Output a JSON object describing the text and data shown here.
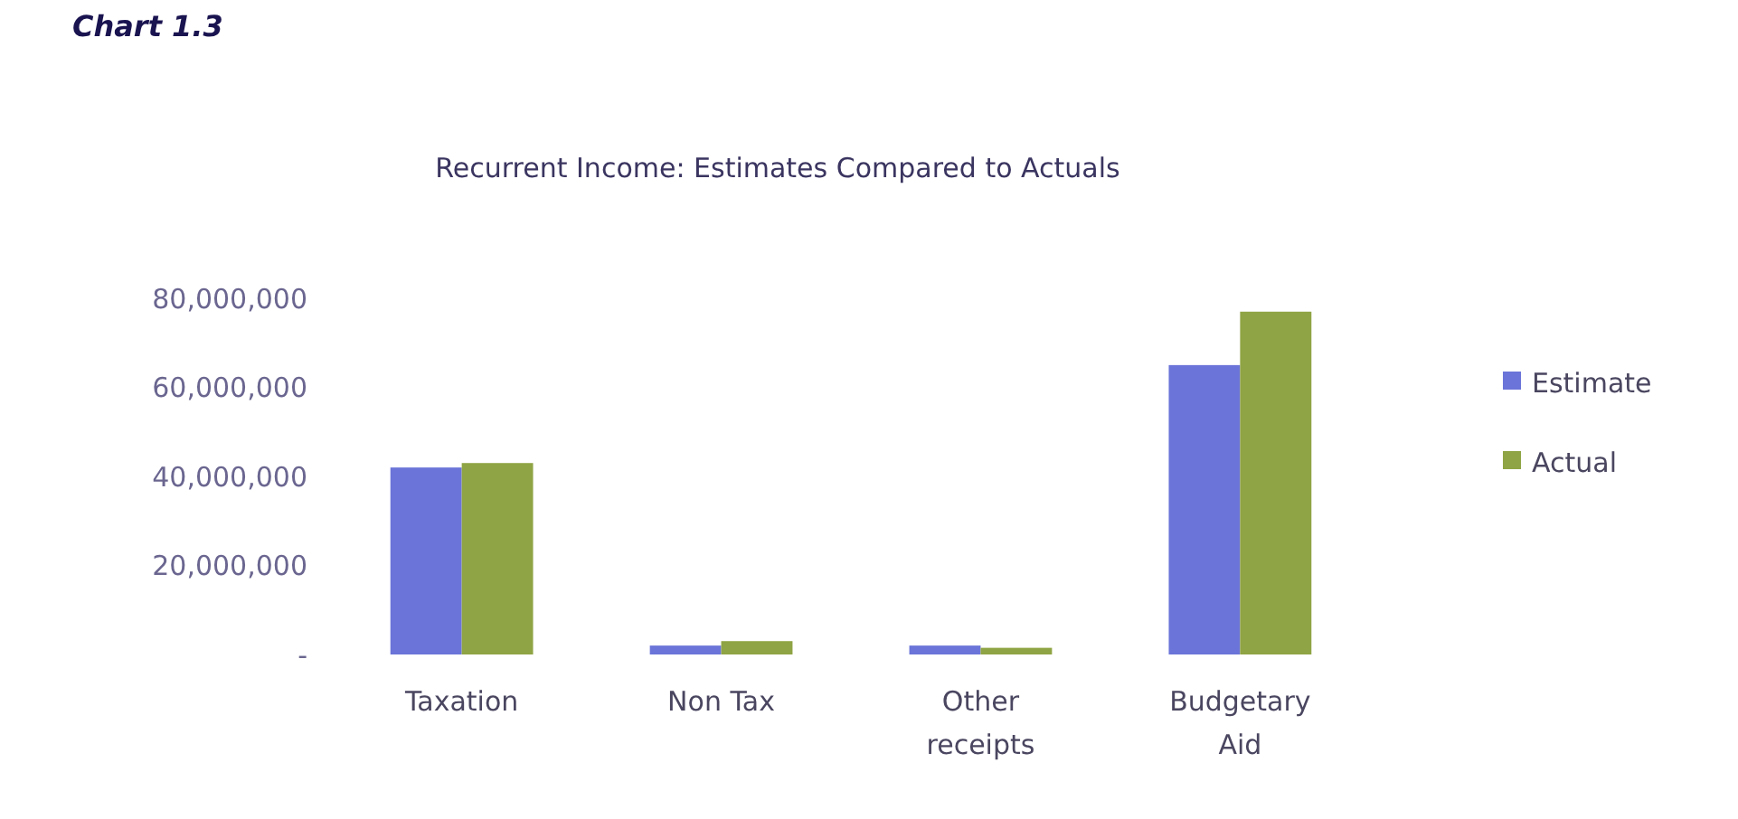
{
  "chart_data": {
    "type": "bar",
    "title": "Recurrent Income: Estimates Compared to Actuals",
    "annotations": [
      "Chart 1.3"
    ],
    "categories": [
      "Taxation",
      "Non Tax",
      "Other receipts",
      "Budgetary Aid"
    ],
    "series": [
      {
        "name": "Estimate",
        "color": "#6b74d8",
        "values": [
          42000000,
          2000000,
          2000000,
          65000000
        ]
      },
      {
        "name": "Actual",
        "color": "#8fa444",
        "values": [
          43000000,
          3000000,
          1500000,
          77000000
        ]
      }
    ],
    "ylim": [
      0,
      80000000
    ],
    "yticks": [
      {
        "value": 0,
        "label": "-"
      },
      {
        "value": 20000000,
        "label": "20,000,000"
      },
      {
        "value": 40000000,
        "label": "40,000,000"
      },
      {
        "value": 60000000,
        "label": "60,000,000"
      },
      {
        "value": 80000000,
        "label": "80,000,000"
      }
    ],
    "grid": false,
    "legend": "right"
  }
}
